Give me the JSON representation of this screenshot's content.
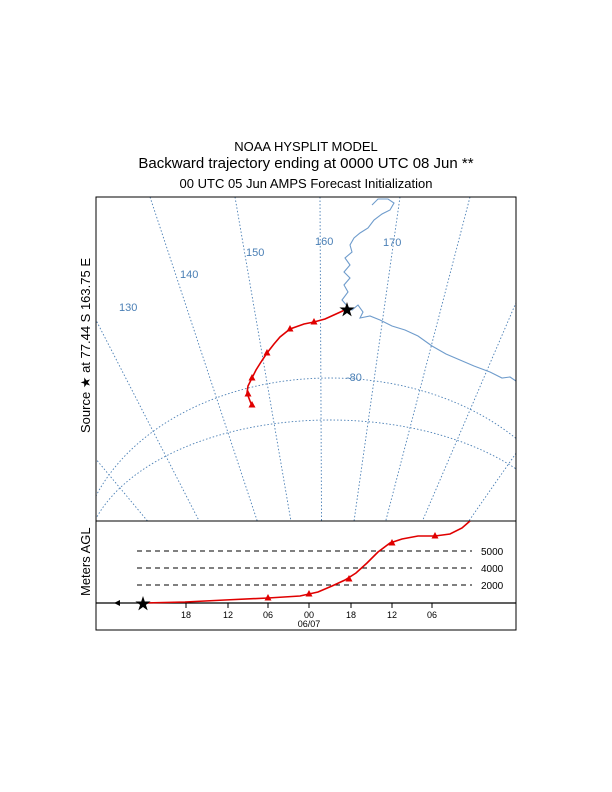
{
  "header": {
    "line1": "NOAA HYSPLIT MODEL",
    "line2": "Backward trajectory ending at 0000 UTC 08 Jun **",
    "line3": "00 UTC 05 Jun    AMPS  Forecast Initialization"
  },
  "map": {
    "source_label": "Source ★ at  77.44 S  163.75 E",
    "source_lat": "77.44 S",
    "source_lon": "163.75 E",
    "meridians": [
      "130",
      "140",
      "150",
      "160",
      "170"
    ],
    "parallel": "-80",
    "colors": {
      "grid": "#4a7fb5",
      "coast": "#6f9ccc",
      "trajectory": "#e00000"
    }
  },
  "height_panel": {
    "ylabel": "Meters AGL",
    "levels": [
      "5000",
      "4000",
      "2000"
    ],
    "time_ticks": [
      "18",
      "12",
      "06",
      "00",
      "18",
      "12",
      "06"
    ],
    "date_label": "06/07"
  }
}
